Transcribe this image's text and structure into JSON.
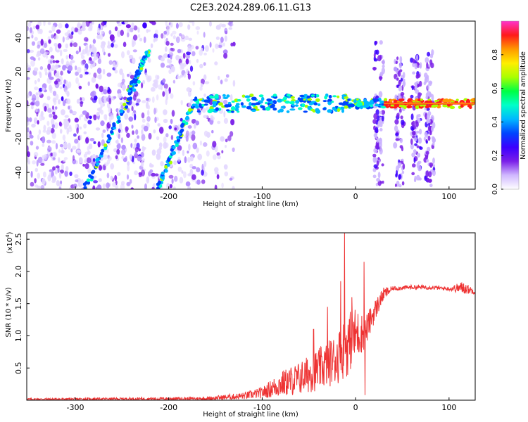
{
  "title": "C2E3.2024.289.06.11.G13",
  "chart_data": [
    {
      "type": "heatmap",
      "name": "spectrogram",
      "xlabel": "Height of straight line (km)",
      "ylabel": "Frequency (Hz)",
      "xlim": [
        -352,
        128
      ],
      "ylim": [
        -50,
        50
      ],
      "x_ticks": [
        -300,
        -200,
        -100,
        0,
        100
      ],
      "y_ticks": [
        -40,
        -20,
        0,
        20,
        40
      ],
      "colorbar": {
        "label": "Normalized spectral amplitude",
        "range": [
          0,
          1
        ],
        "ticks": [
          "0.0",
          "0.2",
          "0.4",
          "0.6",
          "0.8"
        ],
        "tick_values": [
          0.0,
          0.2,
          0.4,
          0.6,
          0.8
        ],
        "colors": [
          "#ffffff",
          "#d0b8ff",
          "#7a1fe8",
          "#3a00ff",
          "#0044ff",
          "#00b8ff",
          "#00ffc8",
          "#00ff44",
          "#aaff00",
          "#ffee00",
          "#ff9900",
          "#ff1a1a",
          "#ff33cc"
        ]
      },
      "features": {
        "tone_line": {
          "x_start": -172,
          "x_end": 128,
          "frequency": 1
        },
        "diagonal_streaks": [
          {
            "x": [
              -290,
              -233
            ],
            "y": [
              -50,
              16
            ]
          },
          {
            "x": [
              -243,
              -222
            ],
            "y": [
              8,
              32
            ]
          },
          {
            "x": [
              -212,
              -175
            ],
            "y": [
              -50,
              0
            ]
          }
        ],
        "noise_x_range": [
          -352,
          -130
        ],
        "vertical_bursts": [
          {
            "x": 25,
            "y": [
              -48,
              38
            ]
          },
          {
            "x": 47,
            "y": [
              -48,
              28
            ]
          },
          {
            "x": 65,
            "y": [
              -45,
              30
            ]
          },
          {
            "x": 79,
            "y": [
              -48,
              32
            ]
          }
        ]
      }
    },
    {
      "type": "line",
      "name": "snr",
      "xlabel": "Height of straight line (km)",
      "ylabel": "SNR (10 * v/v)",
      "multiplier_label": "(x10",
      "multiplier_exp": "4",
      "multiplier_close": ")",
      "xlim": [
        -352,
        128
      ],
      "ylim": [
        0,
        2.6
      ],
      "x_ticks": [
        -300,
        -200,
        -100,
        0,
        100
      ],
      "y_ticks": [
        0.5,
        1.0,
        1.5,
        2.0,
        2.5
      ],
      "y_tick_labels": [
        "0.5",
        "1.0",
        "1.5",
        "2.0",
        "2.5"
      ],
      "color": "#ee3333",
      "envelope": {
        "x": [
          -352,
          -160,
          -120,
          -100,
          -80,
          -60,
          -40,
          -20,
          -10,
          0,
          10,
          20,
          30,
          40,
          60,
          80,
          100,
          115,
          128
        ],
        "lo": [
          0.0,
          0.0,
          0.01,
          0.03,
          0.05,
          0.08,
          0.15,
          0.25,
          0.35,
          0.6,
          0.8,
          1.2,
          1.55,
          1.7,
          1.72,
          1.72,
          1.7,
          1.65,
          1.65
        ],
        "hi": [
          0.03,
          0.05,
          0.12,
          0.2,
          0.45,
          0.6,
          0.8,
          1.05,
          1.35,
          1.45,
          1.3,
          1.55,
          1.75,
          1.77,
          1.79,
          1.79,
          1.76,
          1.85,
          1.72
        ]
      },
      "spikes": [
        {
          "x": -12,
          "y": 2.6
        },
        {
          "x": -16,
          "y": 1.85
        },
        {
          "x": 9,
          "y": 2.15
        },
        {
          "x": 10,
          "y": 0.08
        },
        {
          "x": -45,
          "y": 1.1
        },
        {
          "x": -30,
          "y": 1.45
        },
        {
          "x": -4,
          "y": 1.6
        }
      ]
    }
  ]
}
